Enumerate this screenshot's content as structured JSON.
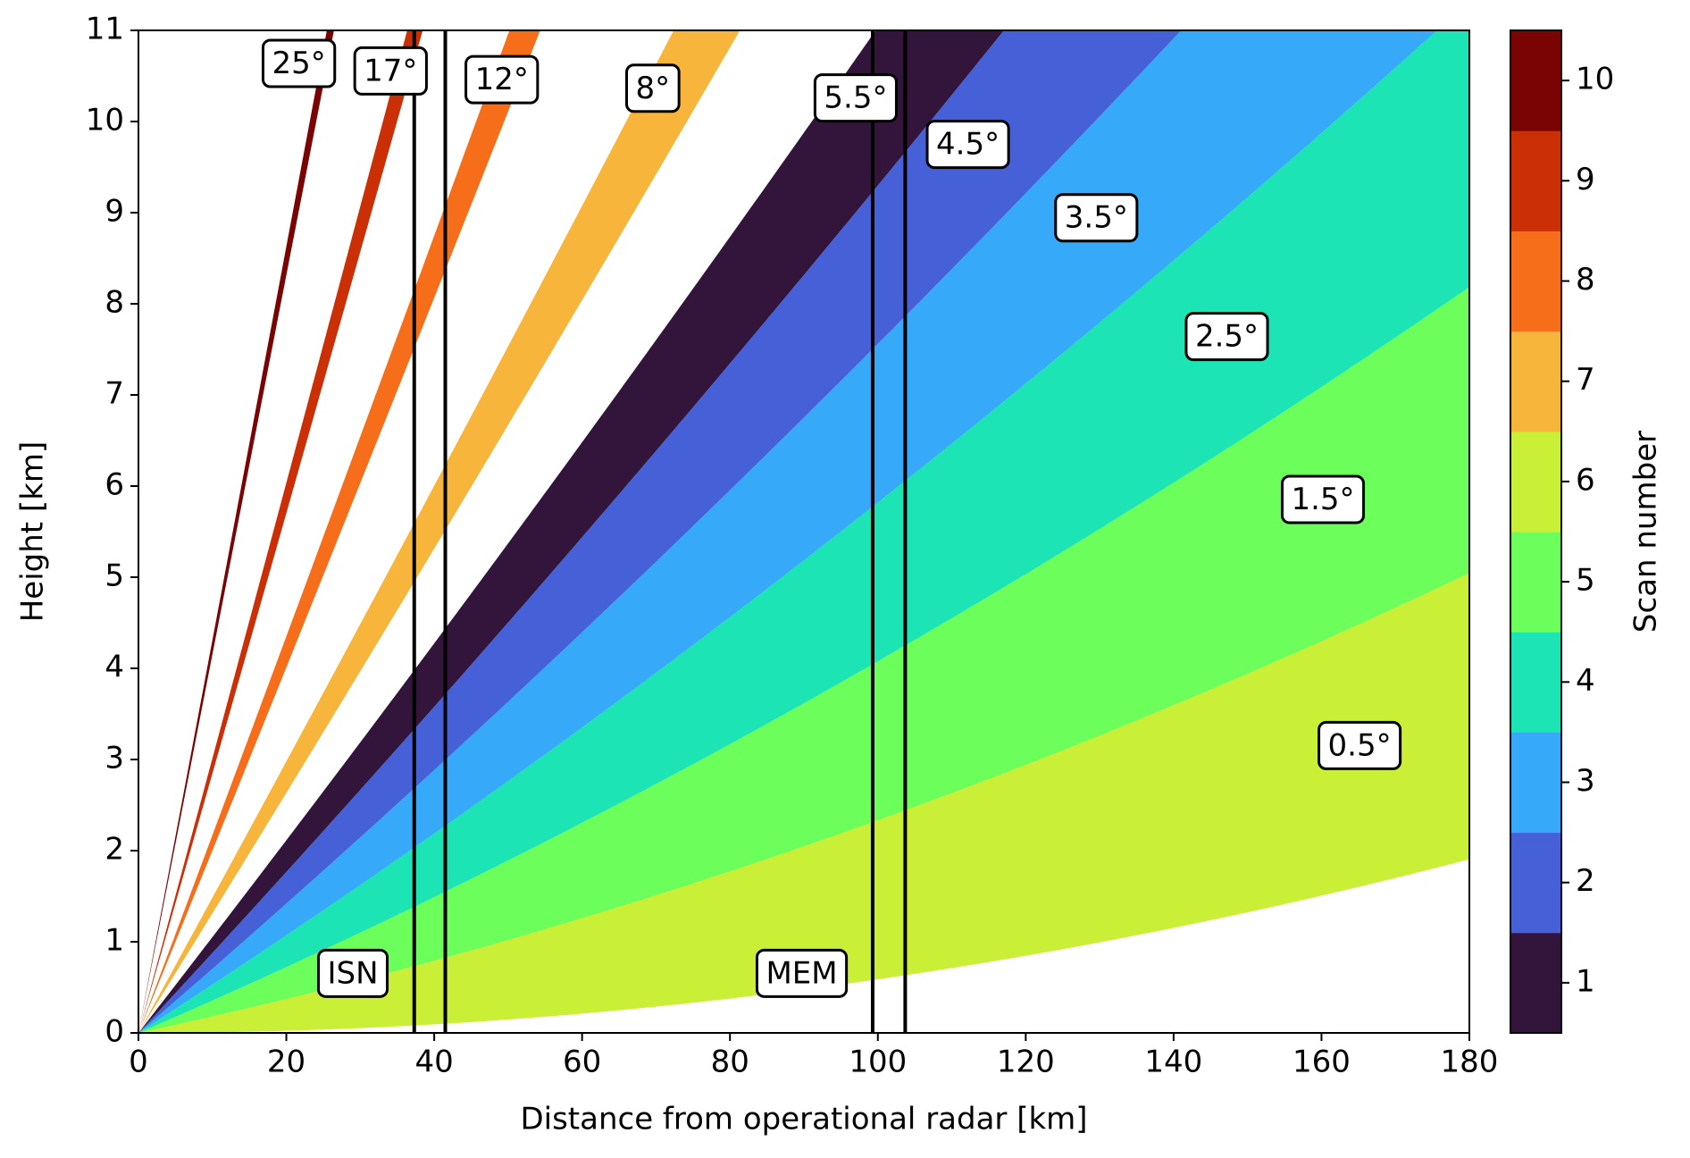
{
  "chart_data": {
    "type": "beam",
    "xlabel": "Distance from operational radar [km]",
    "ylabel": "Height [km]",
    "xlim": [
      0,
      180
    ],
    "xticks": [
      0,
      20,
      40,
      60,
      80,
      100,
      120,
      140,
      160,
      180
    ],
    "ylim": [
      0,
      11
    ],
    "yticks": [
      0,
      1,
      2,
      3,
      4,
      5,
      6,
      7,
      8,
      9,
      10,
      11
    ],
    "beams": [
      {
        "elevation": 0.5,
        "label": "0.5°",
        "scan": 6
      },
      {
        "elevation": 1.5,
        "label": "1.5°",
        "scan": 5
      },
      {
        "elevation": 2.5,
        "label": "2.5°",
        "scan": 4
      },
      {
        "elevation": 3.5,
        "label": "3.5°",
        "scan": 3
      },
      {
        "elevation": 4.5,
        "label": "4.5°",
        "scan": 2
      },
      {
        "elevation": 5.5,
        "label": "5.5°",
        "scan": 1
      },
      {
        "elevation": 8,
        "label": "8°",
        "scan": 7
      },
      {
        "elevation": 12,
        "label": "12°",
        "scan": 8
      },
      {
        "elevation": 17,
        "label": "17°",
        "scan": 9
      },
      {
        "elevation": 25,
        "label": "25°",
        "scan": 10
      }
    ],
    "sites": [
      {
        "name": "ISN",
        "x": [
          37.3,
          41.5
        ]
      },
      {
        "name": "MEM",
        "x": [
          99.3,
          103.7
        ]
      }
    ],
    "colorbar": {
      "label": "Scan number",
      "lim": [
        0.5,
        10.5
      ],
      "ticks": [
        1,
        2,
        3,
        4,
        5,
        6,
        7,
        8,
        9,
        10
      ],
      "colors": [
        "#33143a",
        "#4661d8",
        "#36a9f8",
        "#1de4b5",
        "#6cfe5b",
        "#c9ef36",
        "#f7b53b",
        "#f76e1a",
        "#cb2f06",
        "#7a0403"
      ]
    }
  }
}
